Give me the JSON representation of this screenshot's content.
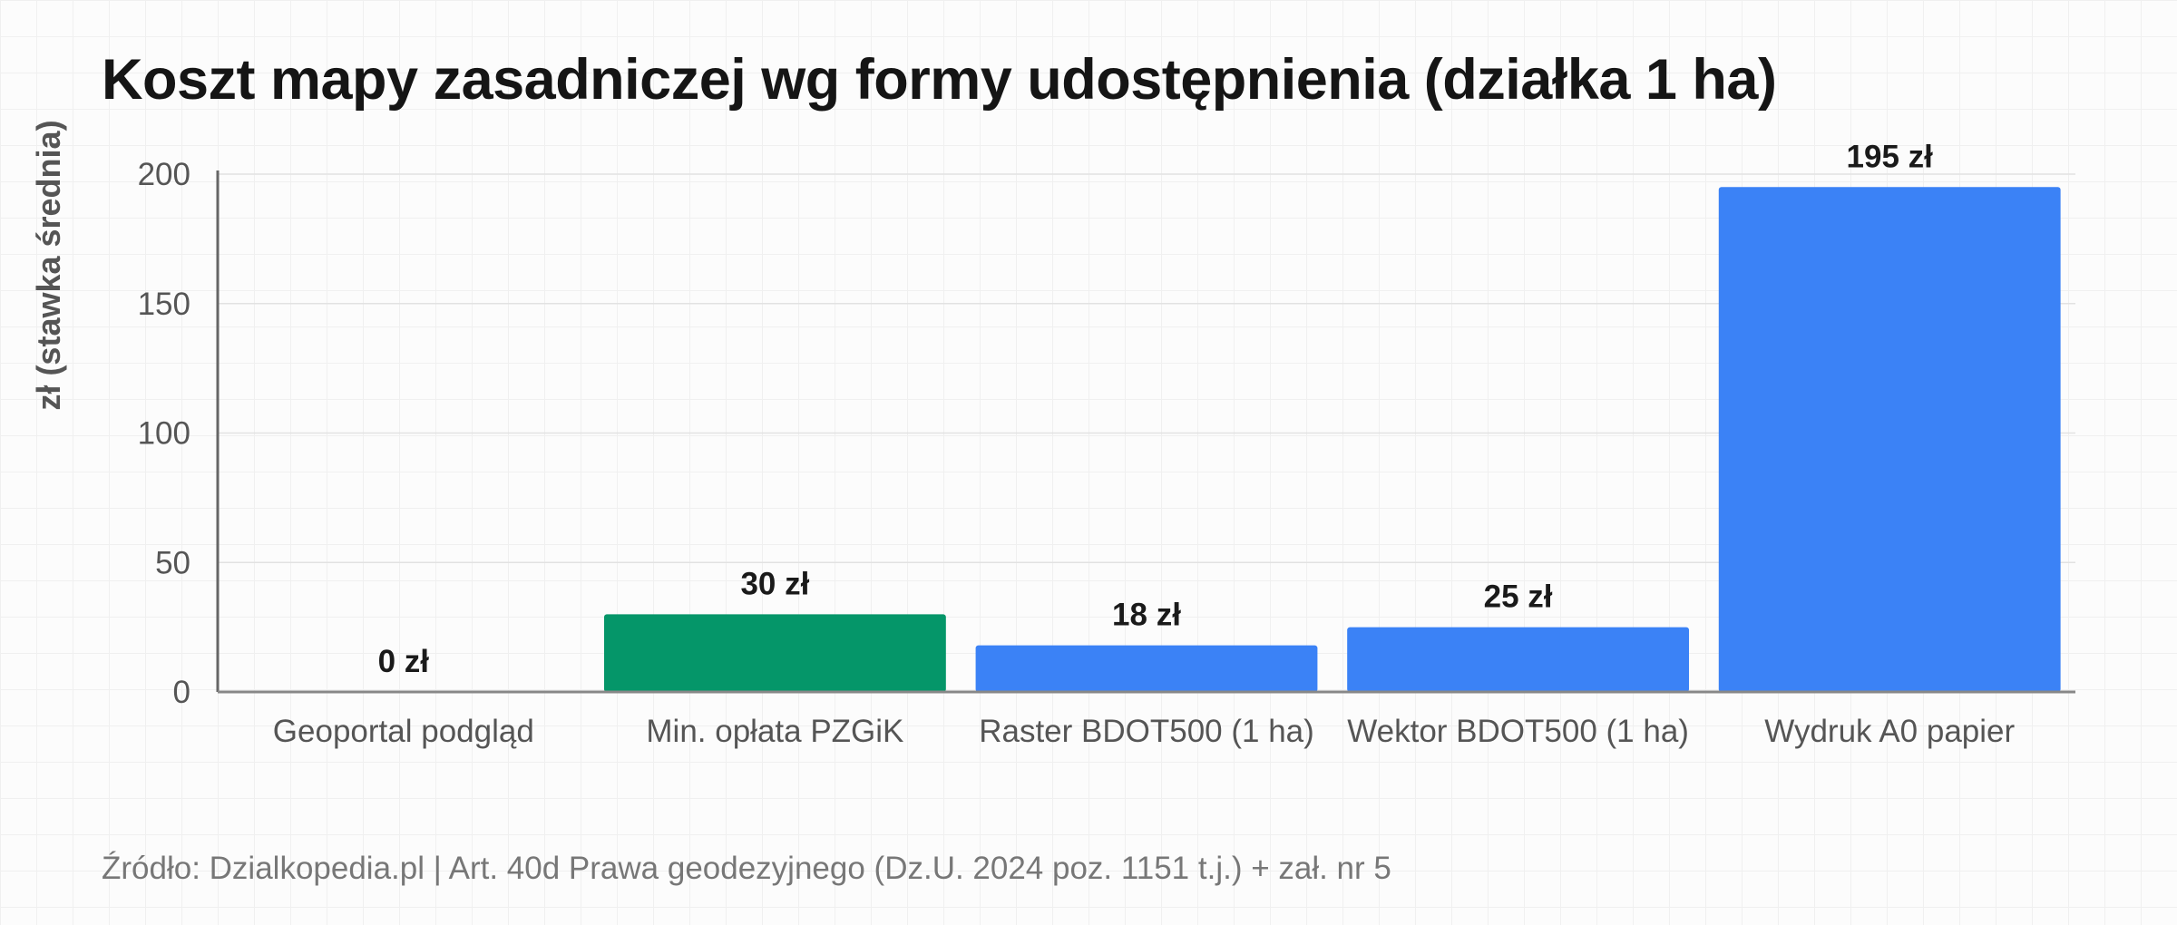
{
  "chart_data": {
    "type": "bar",
    "title": "Koszt mapy zasadniczej wg formy udostępnienia (działka 1 ha)",
    "ylabel": "zł (stawka średnia)",
    "xlabel": "",
    "ylim": [
      0,
      200
    ],
    "yticks": [
      0,
      50,
      100,
      150,
      200
    ],
    "grid": true,
    "categories": [
      "Geoportal podgląd",
      "Min. opłata PZGiK",
      "Raster BDOT500 (1 ha)",
      "Wektor BDOT500 (1 ha)",
      "Wydruk A0 papier"
    ],
    "values": [
      0,
      30,
      18,
      25,
      195
    ],
    "value_labels": [
      "0 zł",
      "30 zł",
      "18 zł",
      "25 zł",
      "195 zł"
    ],
    "bar_colors": [
      "#3b82f6",
      "#059669",
      "#3b82f6",
      "#3b82f6",
      "#3b82f6"
    ]
  },
  "source": "Źródło: Dzialkopedia.pl | Art. 40d Prawa geodezyjnego (Dz.U. 2024 poz. 1151 t.j.) + zał. nr 5"
}
